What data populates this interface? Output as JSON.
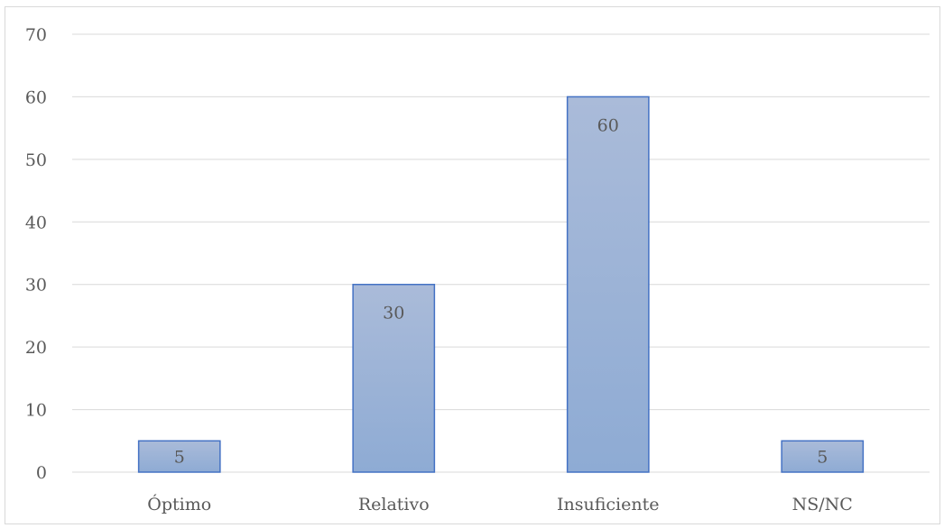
{
  "chart_data": {
    "type": "bar",
    "title": "",
    "xlabel": "",
    "ylabel": "",
    "categories": [
      "Óptimo",
      "Relativo",
      "Insuficiente",
      "NS/NC"
    ],
    "values": [
      5,
      30,
      60,
      5
    ],
    "data_labels": [
      "5",
      "30",
      "60",
      "5"
    ],
    "ylim": [
      0,
      70
    ],
    "yticks": [
      "0",
      "10",
      "20",
      "30",
      "40",
      "50",
      "60",
      "70"
    ],
    "grid": true,
    "legend": "none",
    "colors": {
      "bar_top": "#aabbd9",
      "bar_bottom": "#8eabd4",
      "bar_border": "#4472c4",
      "grid": "#d9d9d9",
      "text": "#595959"
    }
  }
}
